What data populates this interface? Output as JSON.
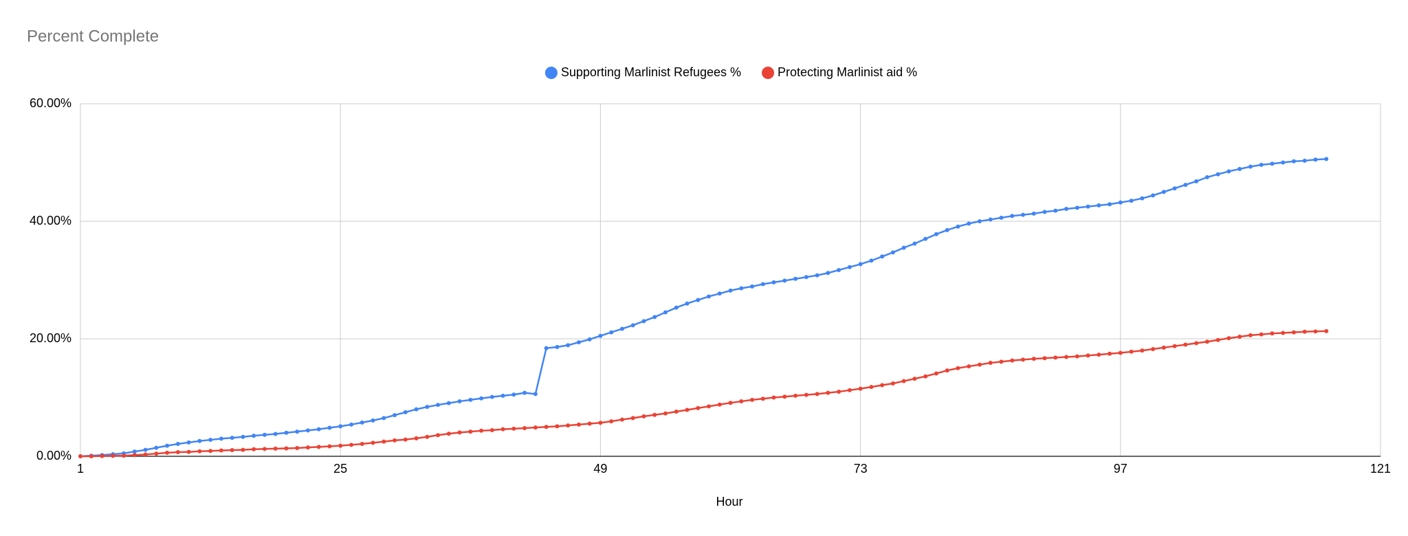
{
  "chart_data": {
    "type": "line",
    "title": "Percent Complete",
    "x_label": "Hour",
    "x": [
      1,
      2,
      3,
      4,
      5,
      6,
      7,
      8,
      9,
      10,
      11,
      12,
      13,
      14,
      15,
      16,
      17,
      18,
      19,
      20,
      21,
      22,
      23,
      24,
      25,
      26,
      27,
      28,
      29,
      30,
      31,
      32,
      33,
      34,
      35,
      36,
      37,
      38,
      39,
      40,
      41,
      42,
      43,
      44,
      45,
      46,
      47,
      48,
      49,
      50,
      51,
      52,
      53,
      54,
      55,
      56,
      57,
      58,
      59,
      60,
      61,
      62,
      63,
      64,
      65,
      66,
      67,
      68,
      69,
      70,
      71,
      72,
      73,
      74,
      75,
      76,
      77,
      78,
      79,
      80,
      81,
      82,
      83,
      84,
      85,
      86,
      87,
      88,
      89,
      90,
      91,
      92,
      93,
      94,
      95,
      96,
      97,
      98,
      99,
      100,
      101,
      102,
      103,
      104,
      105,
      106,
      107,
      108,
      109,
      110,
      111,
      112,
      113,
      114,
      115,
      116
    ],
    "series": [
      {
        "name": "Supporting Marlinist Refugees %",
        "color": "#4285f4",
        "values": [
          0,
          0.1,
          0.2,
          0.35,
          0.5,
          0.8,
          1.1,
          1.45,
          1.8,
          2.1,
          2.35,
          2.6,
          2.8,
          3.0,
          3.15,
          3.3,
          3.5,
          3.65,
          3.8,
          4.0,
          4.2,
          4.4,
          4.6,
          4.85,
          5.1,
          5.4,
          5.75,
          6.1,
          6.5,
          7.0,
          7.5,
          8.0,
          8.4,
          8.75,
          9.05,
          9.35,
          9.6,
          9.85,
          10.1,
          10.3,
          10.5,
          10.8,
          10.6,
          18.4,
          18.6,
          18.9,
          19.4,
          19.9,
          20.5,
          21.1,
          21.7,
          22.3,
          23.0,
          23.7,
          24.5,
          25.3,
          26.0,
          26.6,
          27.2,
          27.7,
          28.2,
          28.6,
          28.9,
          29.3,
          29.6,
          29.9,
          30.2,
          30.5,
          30.8,
          31.2,
          31.7,
          32.2,
          32.7,
          33.3,
          34.0,
          34.7,
          35.5,
          36.2,
          37.0,
          37.8,
          38.5,
          39.1,
          39.6,
          40.0,
          40.3,
          40.6,
          40.9,
          41.1,
          41.3,
          41.6,
          41.8,
          42.1,
          42.3,
          42.5,
          42.7,
          42.9,
          43.2,
          43.5,
          43.9,
          44.4,
          45.0,
          45.6,
          46.2,
          46.8,
          47.5,
          48.0,
          48.5,
          48.9,
          49.3,
          49.6,
          49.8,
          50.0,
          50.2,
          50.3,
          50.5,
          50.6
        ]
      },
      {
        "name": "Protecting Marlinist aid %",
        "color": "#ea4335",
        "values": [
          0,
          0,
          0.05,
          0.08,
          0.1,
          0.2,
          0.3,
          0.45,
          0.6,
          0.7,
          0.75,
          0.85,
          0.9,
          1.0,
          1.05,
          1.1,
          1.2,
          1.25,
          1.3,
          1.35,
          1.4,
          1.5,
          1.6,
          1.7,
          1.8,
          1.95,
          2.1,
          2.3,
          2.5,
          2.7,
          2.85,
          3.05,
          3.3,
          3.6,
          3.85,
          4.05,
          4.2,
          4.35,
          4.45,
          4.6,
          4.7,
          4.8,
          4.9,
          5.0,
          5.1,
          5.25,
          5.4,
          5.55,
          5.7,
          5.95,
          6.25,
          6.5,
          6.8,
          7.05,
          7.3,
          7.6,
          7.9,
          8.2,
          8.5,
          8.8,
          9.1,
          9.35,
          9.6,
          9.8,
          10.0,
          10.15,
          10.3,
          10.45,
          10.6,
          10.8,
          11.0,
          11.25,
          11.5,
          11.8,
          12.1,
          12.4,
          12.8,
          13.2,
          13.6,
          14.1,
          14.6,
          15.0,
          15.3,
          15.6,
          15.9,
          16.1,
          16.3,
          16.45,
          16.6,
          16.7,
          16.8,
          16.9,
          17.0,
          17.15,
          17.3,
          17.45,
          17.6,
          17.8,
          18.0,
          18.25,
          18.5,
          18.75,
          19.0,
          19.25,
          19.5,
          19.8,
          20.1,
          20.35,
          20.6,
          20.75,
          20.9,
          21.0,
          21.1,
          21.2,
          21.25,
          21.3
        ]
      }
    ],
    "xlim": [
      1,
      121
    ],
    "xticks": [
      1,
      25,
      49,
      73,
      97,
      121
    ],
    "ylim": [
      0,
      60
    ],
    "yticks": [
      {
        "value": 0,
        "label": "0.00%"
      },
      {
        "value": 20,
        "label": "20.00%"
      },
      {
        "value": 40,
        "label": "40.00%"
      },
      {
        "value": 60,
        "label": "60.00%"
      }
    ],
    "grid": true,
    "legend": "top"
  }
}
